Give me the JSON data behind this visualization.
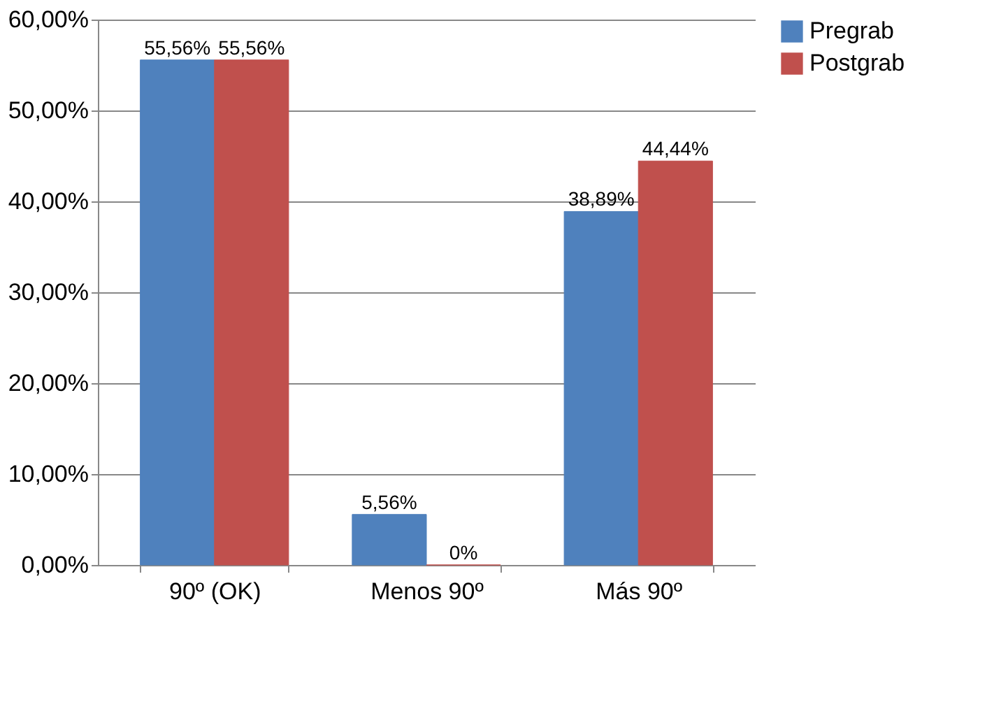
{
  "chart_data": {
    "type": "bar",
    "categories": [
      "90º (OK)",
      "Menos 90º",
      "Más 90º"
    ],
    "series": [
      {
        "name": "Pregrab",
        "color": "#4f81bd",
        "values": [
          55.56,
          5.56,
          38.89
        ],
        "value_labels": [
          "55,56%",
          "5,56%",
          "38,89%"
        ]
      },
      {
        "name": "Postgrab",
        "color": "#c0504d",
        "values": [
          55.56,
          0,
          44.44
        ],
        "value_labels": [
          "55,56%",
          "0%",
          "44,44%"
        ]
      }
    ],
    "ylim": [
      0,
      60
    ],
    "yticks": [
      {
        "value": 0,
        "label": "0,00%"
      },
      {
        "value": 10,
        "label": "10,00%"
      },
      {
        "value": 20,
        "label": "20,00%"
      },
      {
        "value": 30,
        "label": "30,00%"
      },
      {
        "value": 40,
        "label": "40,00%"
      },
      {
        "value": 50,
        "label": "50,00%"
      },
      {
        "value": 60,
        "label": "60,00%"
      }
    ],
    "grid": "y",
    "legend": "right"
  }
}
